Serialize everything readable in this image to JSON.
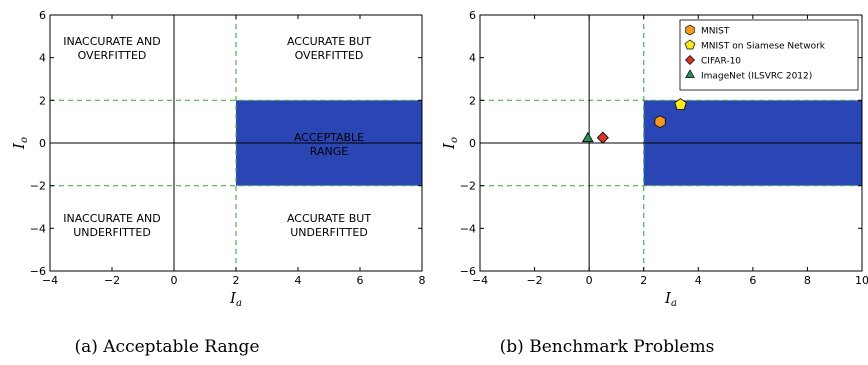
{
  "colors": {
    "region": "#2a46b5",
    "guide": "#4caf50",
    "mnist": "#f39a1e",
    "mnist_siamese": "#f7ea1f",
    "cifar": "#d93326",
    "imagenet": "#2e8b57"
  },
  "chart_data": [
    {
      "type": "scatter",
      "caption": "(a) Acceptable Range",
      "xlabel": "I_a",
      "ylabel": "I_o",
      "xlim": [
        -4,
        8
      ],
      "ylim": [
        -6,
        6
      ],
      "xticks": [
        -4,
        -2,
        0,
        2,
        4,
        6,
        8
      ],
      "yticks": [
        -6,
        -4,
        -2,
        0,
        2,
        4,
        6
      ],
      "acceptable_region": {
        "x": [
          2,
          8
        ],
        "y": [
          -2,
          2
        ]
      },
      "guides": {
        "x": 2,
        "y": [
          2,
          -2
        ]
      },
      "region_labels": [
        {
          "lines": [
            "INACCURATE AND",
            "OVERFITTED"
          ],
          "at": [
            -2,
            4.5
          ]
        },
        {
          "lines": [
            "ACCURATE BUT",
            "OVERFITTED"
          ],
          "at": [
            5,
            4.5
          ]
        },
        {
          "lines": [
            "ACCEPTABLE",
            "RANGE"
          ],
          "at": [
            5,
            0
          ]
        },
        {
          "lines": [
            "INACCURATE AND",
            "UNDERFITTED"
          ],
          "at": [
            -2,
            -3.8
          ]
        },
        {
          "lines": [
            "ACCURATE BUT",
            "UNDERFITTED"
          ],
          "at": [
            5,
            -3.8
          ]
        }
      ],
      "series": []
    },
    {
      "type": "scatter",
      "caption": "(b) Benchmark Problems",
      "xlabel": "I_a",
      "ylabel": "I_o",
      "xlim": [
        -4,
        10
      ],
      "ylim": [
        -6,
        6
      ],
      "xticks": [
        -4,
        -2,
        0,
        2,
        4,
        6,
        8,
        10
      ],
      "yticks": [
        -6,
        -4,
        -2,
        0,
        2,
        4,
        6
      ],
      "acceptable_region": {
        "x": [
          2,
          10
        ],
        "y": [
          -2,
          2
        ]
      },
      "guides": {
        "x": 2,
        "y": [
          2,
          -2
        ]
      },
      "region_labels": [],
      "legend": "top-right",
      "series": [
        {
          "name": "MNIST",
          "marker": "hexagon",
          "color": "#f39a1e",
          "x": 2.6,
          "y": 1.0
        },
        {
          "name": "MNIST on Siamese Network",
          "marker": "pentagon",
          "color": "#f7ea1f",
          "x": 3.35,
          "y": 1.8
        },
        {
          "name": "CIFAR-10",
          "marker": "diamond",
          "color": "#d93326",
          "x": 0.5,
          "y": 0.25
        },
        {
          "name": "ImageNet (ILSVRC 2012)",
          "marker": "triangle",
          "color": "#2e8b57",
          "x": -0.05,
          "y": 0.2
        }
      ]
    }
  ]
}
